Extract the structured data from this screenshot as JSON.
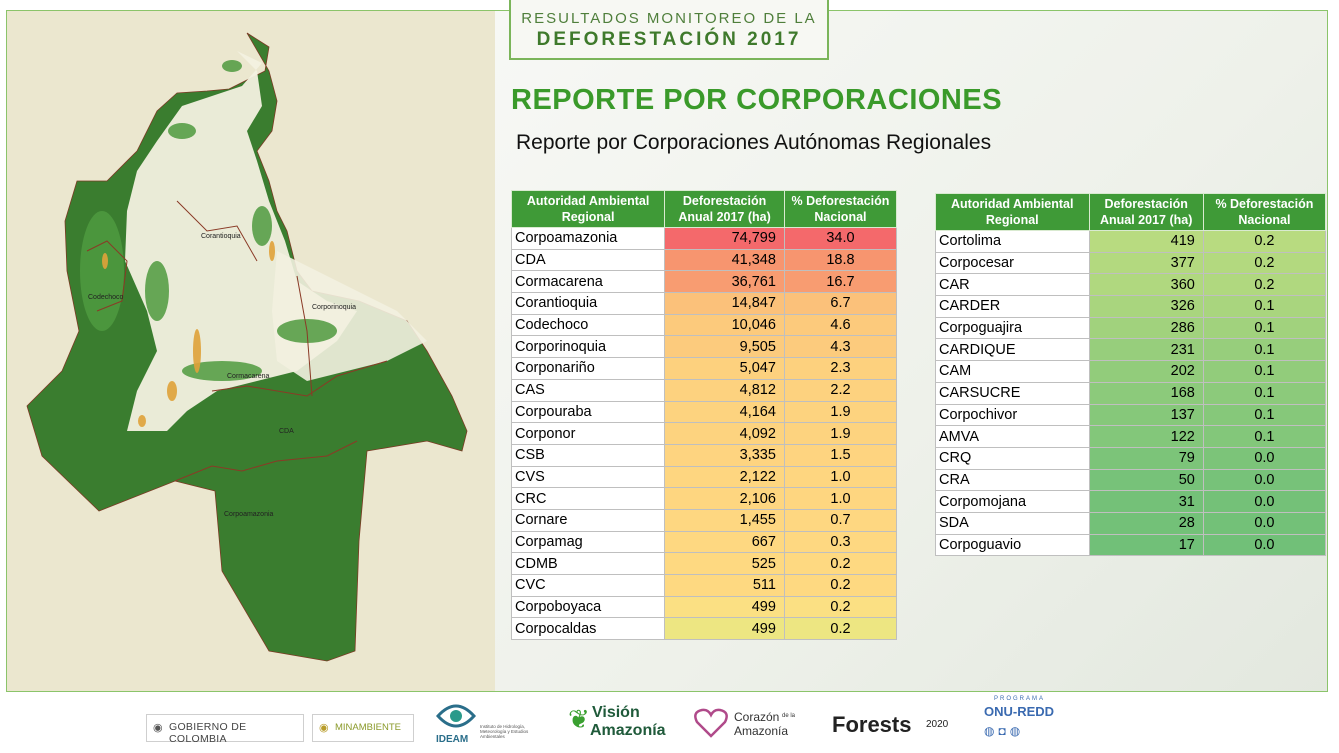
{
  "header": {
    "line1": "RESULTADOS MONITOREO DE LA",
    "line2": "DEFORESTACIÓN 2017"
  },
  "heading": "REPORTE POR CORPORACIONES",
  "subheading": "Reporte por Corporaciones Autónomas Regionales",
  "map": {
    "labels": [
      "Corantioquia",
      "Codechoco",
      "Corporinoquia",
      "Cormacarena",
      "CDA",
      "Corpoamazonia"
    ]
  },
  "table_headers": {
    "col1": "Autoridad Ambiental Regional",
    "col2": "Deforestación Anual 2017 (ha)",
    "col3": "% Deforestación Nacional"
  },
  "table_left": [
    {
      "name": "Corpoamazonia",
      "ha": "74,799",
      "pct": "34.0",
      "color": "#f4696b"
    },
    {
      "name": "CDA",
      "ha": "41,348",
      "pct": "18.8",
      "color": "#f7956f"
    },
    {
      "name": "Cormacarena",
      "ha": "36,761",
      "pct": "16.7",
      "color": "#f89c71"
    },
    {
      "name": "Corantioquia",
      "ha": "14,847",
      "pct": "6.7",
      "color": "#fbc17a"
    },
    {
      "name": "Codechoco",
      "ha": "10,046",
      "pct": "4.6",
      "color": "#fcca7c"
    },
    {
      "name": "Corporinoquia",
      "ha": "9,505",
      "pct": "4.3",
      "color": "#fccb7d"
    },
    {
      "name": "Corponariño",
      "ha": "5,047",
      "pct": "2.3",
      "color": "#fdd17e"
    },
    {
      "name": "CAS",
      "ha": "4,812",
      "pct": "2.2",
      "color": "#fdd27f"
    },
    {
      "name": "Corpouraba",
      "ha": "4,164",
      "pct": "1.9",
      "color": "#fdd37f"
    },
    {
      "name": "Corponor",
      "ha": "4,092",
      "pct": "1.9",
      "color": "#fdd37f"
    },
    {
      "name": "CSB",
      "ha": "3,335",
      "pct": "1.5",
      "color": "#fed480"
    },
    {
      "name": "CVS",
      "ha": "2,122",
      "pct": "1.0",
      "color": "#fed680"
    },
    {
      "name": "CRC",
      "ha": "2,106",
      "pct": "1.0",
      "color": "#fed680"
    },
    {
      "name": "Cornare",
      "ha": "1,455",
      "pct": "0.7",
      "color": "#fed781"
    },
    {
      "name": "Corpamag",
      "ha": "667",
      "pct": "0.3",
      "color": "#fed881"
    },
    {
      "name": "CDMB",
      "ha": "525",
      "pct": "0.2",
      "color": "#fed981"
    },
    {
      "name": "CVC",
      "ha": "511",
      "pct": "0.2",
      "color": "#fed981"
    },
    {
      "name": "Corpoboyaca",
      "ha": "499",
      "pct": "0.2",
      "color": "#fbe083"
    },
    {
      "name": "Corpocaldas",
      "ha": "499",
      "pct": "0.2",
      "color": "#ede682"
    }
  ],
  "table_right": [
    {
      "name": "Cortolima",
      "ha": "419",
      "pct": "0.2",
      "color": "#b8db80"
    },
    {
      "name": "Corpocesar",
      "ha": "377",
      "pct": "0.2",
      "color": "#b3d97f"
    },
    {
      "name": "CAR",
      "ha": "360",
      "pct": "0.2",
      "color": "#b0d87f"
    },
    {
      "name": "CARDER",
      "ha": "326",
      "pct": "0.1",
      "color": "#a9d57e"
    },
    {
      "name": "Corpoguajira",
      "ha": "286",
      "pct": "0.1",
      "color": "#a1d27d"
    },
    {
      "name": "CARDIQUE",
      "ha": "231",
      "pct": "0.1",
      "color": "#97ce7c"
    },
    {
      "name": "CAM",
      "ha": "202",
      "pct": "0.1",
      "color": "#92cc7b"
    },
    {
      "name": "CARSUCRE",
      "ha": "168",
      "pct": "0.1",
      "color": "#8cca7b"
    },
    {
      "name": "Corpochivor",
      "ha": "137",
      "pct": "0.1",
      "color": "#86c87a"
    },
    {
      "name": "AMVA",
      "ha": "122",
      "pct": "0.1",
      "color": "#83c77a"
    },
    {
      "name": "CRQ",
      "ha": "79",
      "pct": "0.0",
      "color": "#7cc479"
    },
    {
      "name": "CRA",
      "ha": "50",
      "pct": "0.0",
      "color": "#77c279"
    },
    {
      "name": "Corpomojana",
      "ha": "31",
      "pct": "0.0",
      "color": "#74c178"
    },
    {
      "name": "SDA",
      "ha": "28",
      "pct": "0.0",
      "color": "#73c178"
    },
    {
      "name": "Corpoguavio",
      "ha": "17",
      "pct": "0.0",
      "color": "#71c078"
    }
  ],
  "footer": {
    "gobierno": "GOBIERNO DE COLOMBIA",
    "minambiente": "MINAMBIENTE",
    "ideam": "IDEAM",
    "ideam_desc": "Instituto de Hidrología, Meteorología y Estudios Ambientales",
    "vision_1": "Visión",
    "vision_2": "Amazonía",
    "corazon_1": "Corazón",
    "corazon_de_la": "de la",
    "corazon_2": "Amazonía",
    "forests": "Forests",
    "forests_year": "2020",
    "onu_programa": "PROGRAMA",
    "onu_redd": "ONU-REDD"
  }
}
